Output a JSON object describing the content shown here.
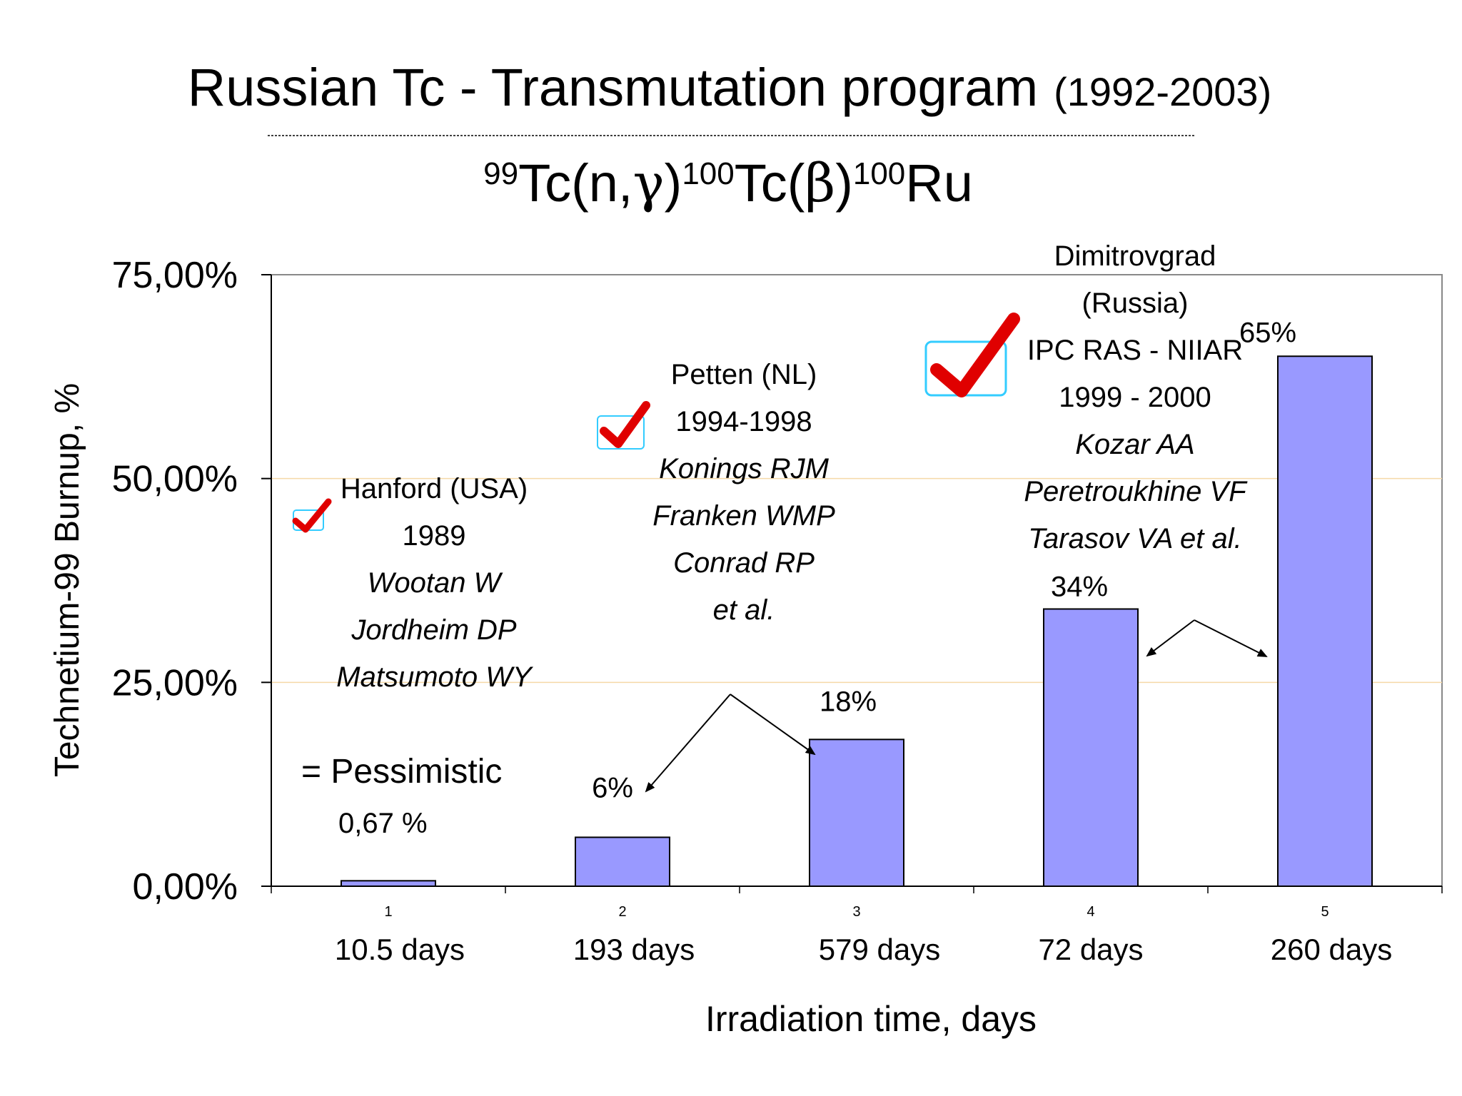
{
  "slide": {
    "title_main": "Russian Tc - Transmutation program",
    "title_years": "(1992-2003)",
    "reaction": {
      "m1": "99",
      "p1": "Tc(n,",
      "g1": "γ",
      "p2": ")",
      "m2": "100",
      "p3": "Tc(",
      "g2": "β",
      "p4": ")",
      "m3": "100",
      "p5": "Ru"
    }
  },
  "chart_data": {
    "type": "bar",
    "ylabel": "Technetium-99 Burnup, %",
    "xlabel": "Irradiation time, days",
    "ylim": [
      0,
      75
    ],
    "y_ticks": [
      "0,00%",
      "25,00%",
      "50,00%",
      "75,00%"
    ],
    "categories": [
      "1",
      "2",
      "3",
      "4",
      "5"
    ],
    "category_sublabels": [
      "10.5 days",
      "193 days",
      "579 days",
      "72 days",
      "260 days"
    ],
    "values": [
      0.67,
      6,
      18,
      34,
      65
    ],
    "data_labels": [
      "",
      "6%",
      "18%",
      "34%",
      "65%"
    ],
    "gridlines": [
      25,
      50
    ],
    "colors": {
      "bar": "#9999ff",
      "grid": "#f5d9a8",
      "check": "#ff0000",
      "check_box": "#33ccff"
    }
  },
  "annotations": {
    "hanford": {
      "lines": [
        "Hanford (USA)",
        "1989"
      ],
      "authors": [
        "Wootan W",
        "Jordheim DP",
        "Matsumoto WY"
      ]
    },
    "pessimistic": {
      "text": "=  Pessimistic",
      "value": "0,67 %"
    },
    "petten": {
      "lines": [
        "Petten (NL)",
        "1994-1998"
      ],
      "authors": [
        "Konings RJM",
        "Franken WMP",
        "Conrad RP",
        "et al."
      ]
    },
    "dimitrovgrad": {
      "lines": [
        "Dimitrovgrad",
        "(Russia)",
        "IPC RAS - NIIAR",
        "1999 - 2000"
      ],
      "authors": [
        "Kozar AA",
        "Peretroukhine VF",
        "Tarasov VA et al."
      ]
    }
  }
}
